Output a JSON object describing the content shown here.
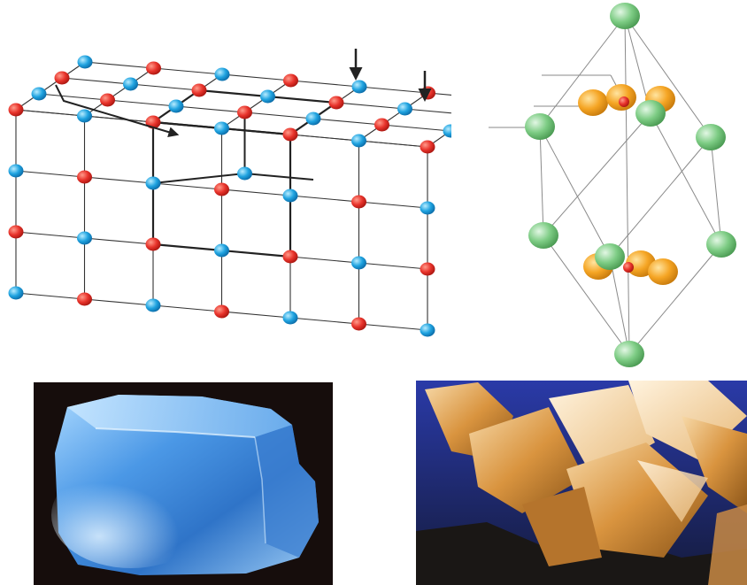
{
  "figure": {
    "panels": [
      {
        "id": "nacl-lattice",
        "kind": "crystal-lattice-diagram"
      },
      {
        "id": "calcite-unit-cell",
        "kind": "rhombohedral-unit-cell-diagram"
      },
      {
        "id": "halite-photo",
        "kind": "mineral-photograph"
      },
      {
        "id": "calcite-photo",
        "kind": "mineral-photograph"
      }
    ],
    "colors": {
      "ion_red": "#e8332b",
      "ion_blue": "#1fa3e0",
      "calcium_green": "#7dcc84",
      "oxygen_orange": "#f5a524",
      "carbon_red": "#e8332b",
      "lattice_line": "#333333",
      "cell_line": "#888888"
    }
  }
}
